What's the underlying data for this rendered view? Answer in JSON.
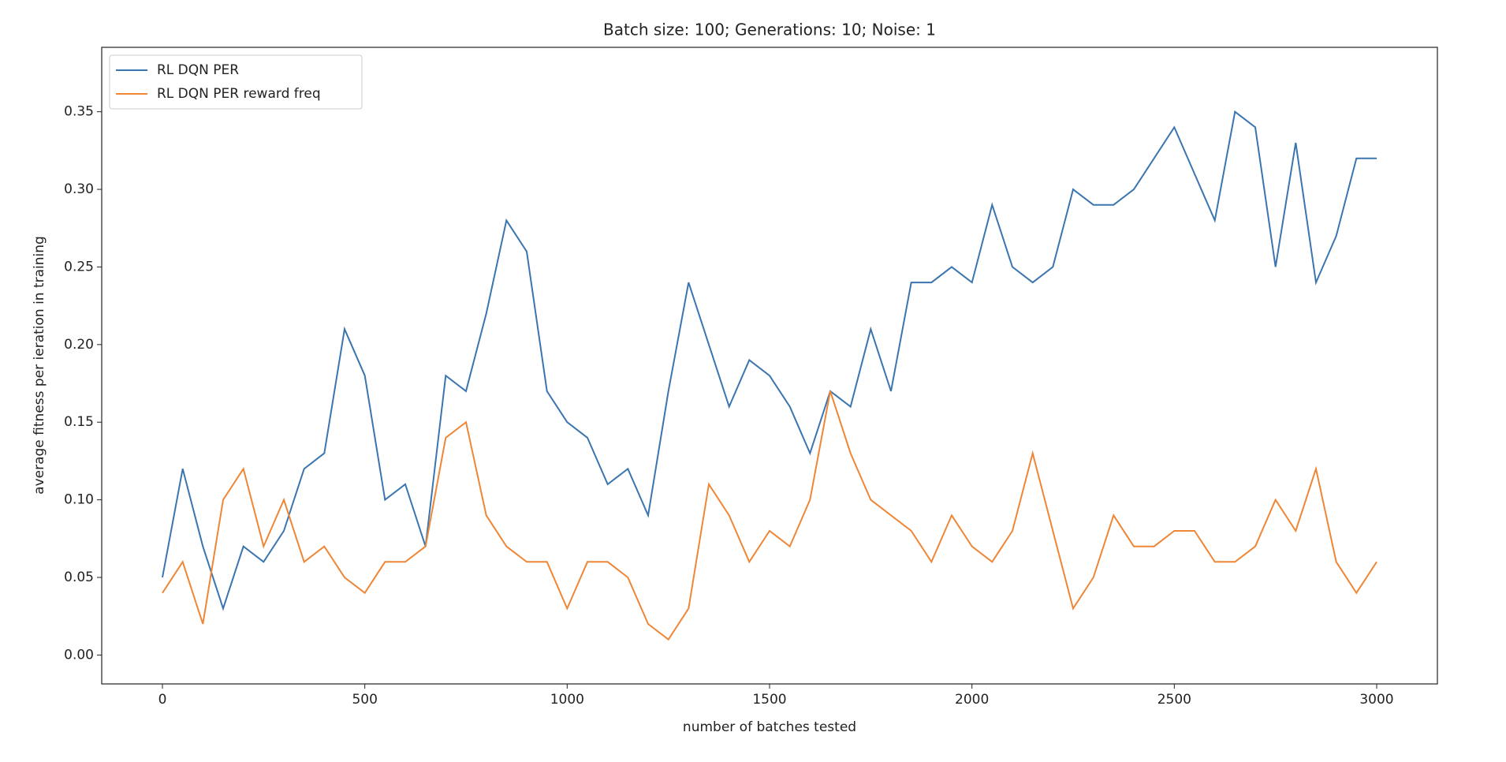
{
  "chart_data": {
    "type": "line",
    "title": "Batch size: 100; Generations: 10; Noise: 1",
    "xlabel": "number of batches tested",
    "ylabel": "average fitness per ieration in training",
    "x": [
      0,
      50,
      100,
      150,
      200,
      250,
      300,
      350,
      400,
      450,
      500,
      550,
      600,
      650,
      700,
      750,
      800,
      850,
      900,
      950,
      1000,
      1050,
      1100,
      1150,
      1200,
      1250,
      1300,
      1350,
      1400,
      1450,
      1500,
      1550,
      1600,
      1650,
      1700,
      1750,
      1800,
      1850,
      1900,
      1950,
      2000,
      2050,
      2100,
      2150,
      2200,
      2250,
      2300,
      2350,
      2400,
      2450,
      2500,
      2550,
      2600,
      2650,
      2700,
      2750,
      2800,
      2850,
      2900,
      2950,
      3000
    ],
    "series": [
      {
        "name": "RL DQN PER",
        "color": "#3a75b0",
        "values": [
          0.05,
          0.12,
          0.07,
          0.03,
          0.07,
          0.06,
          0.08,
          0.12,
          0.13,
          0.21,
          0.18,
          0.1,
          0.11,
          0.07,
          0.18,
          0.17,
          0.22,
          0.28,
          0.26,
          0.17,
          0.15,
          0.14,
          0.11,
          0.12,
          0.09,
          0.17,
          0.24,
          0.2,
          0.16,
          0.19,
          0.18,
          0.16,
          0.13,
          0.17,
          0.16,
          0.21,
          0.17,
          0.24,
          0.24,
          0.25,
          0.24,
          0.29,
          0.25,
          0.24,
          0.25,
          0.3,
          0.29,
          0.29,
          0.3,
          0.32,
          0.34,
          0.31,
          0.28,
          0.35,
          0.34,
          0.25,
          0.33,
          0.24,
          0.27,
          0.32,
          0.32
        ]
      },
      {
        "name": "RL DQN PER reward freq",
        "color": "#ef8636",
        "values": [
          0.04,
          0.06,
          0.02,
          0.1,
          0.12,
          0.07,
          0.1,
          0.06,
          0.07,
          0.05,
          0.04,
          0.06,
          0.06,
          0.07,
          0.14,
          0.15,
          0.09,
          0.07,
          0.06,
          0.06,
          0.03,
          0.06,
          0.06,
          0.05,
          0.02,
          0.01,
          0.03,
          0.11,
          0.09,
          0.06,
          0.08,
          0.07,
          0.1,
          0.17,
          0.13,
          0.1,
          0.09,
          0.08,
          0.06,
          0.09,
          0.07,
          0.06,
          0.08,
          0.13,
          0.08,
          0.03,
          0.05,
          0.09,
          0.07,
          0.07,
          0.08,
          0.08,
          0.06,
          0.06,
          0.07,
          0.1,
          0.08,
          0.12,
          0.06,
          0.04,
          0.06
        ]
      }
    ],
    "xlim": [
      -150,
      3150
    ],
    "ylim": [
      -0.0186,
      0.3915
    ],
    "xticks": [
      0,
      500,
      1000,
      1500,
      2000,
      2500,
      3000
    ],
    "yticks": [
      {
        "value": 0,
        "label": "0.00"
      },
      {
        "value": 0.05,
        "label": "0.05"
      },
      {
        "value": 0.1,
        "label": "0.10"
      },
      {
        "value": 0.15,
        "label": "0.15"
      },
      {
        "value": 0.2,
        "label": "0.20"
      },
      {
        "value": 0.25,
        "label": "0.25"
      },
      {
        "value": 0.3,
        "label": "0.30"
      },
      {
        "value": 0.35,
        "label": "0.35"
      }
    ],
    "legend": "upper left",
    "grid": false
  }
}
